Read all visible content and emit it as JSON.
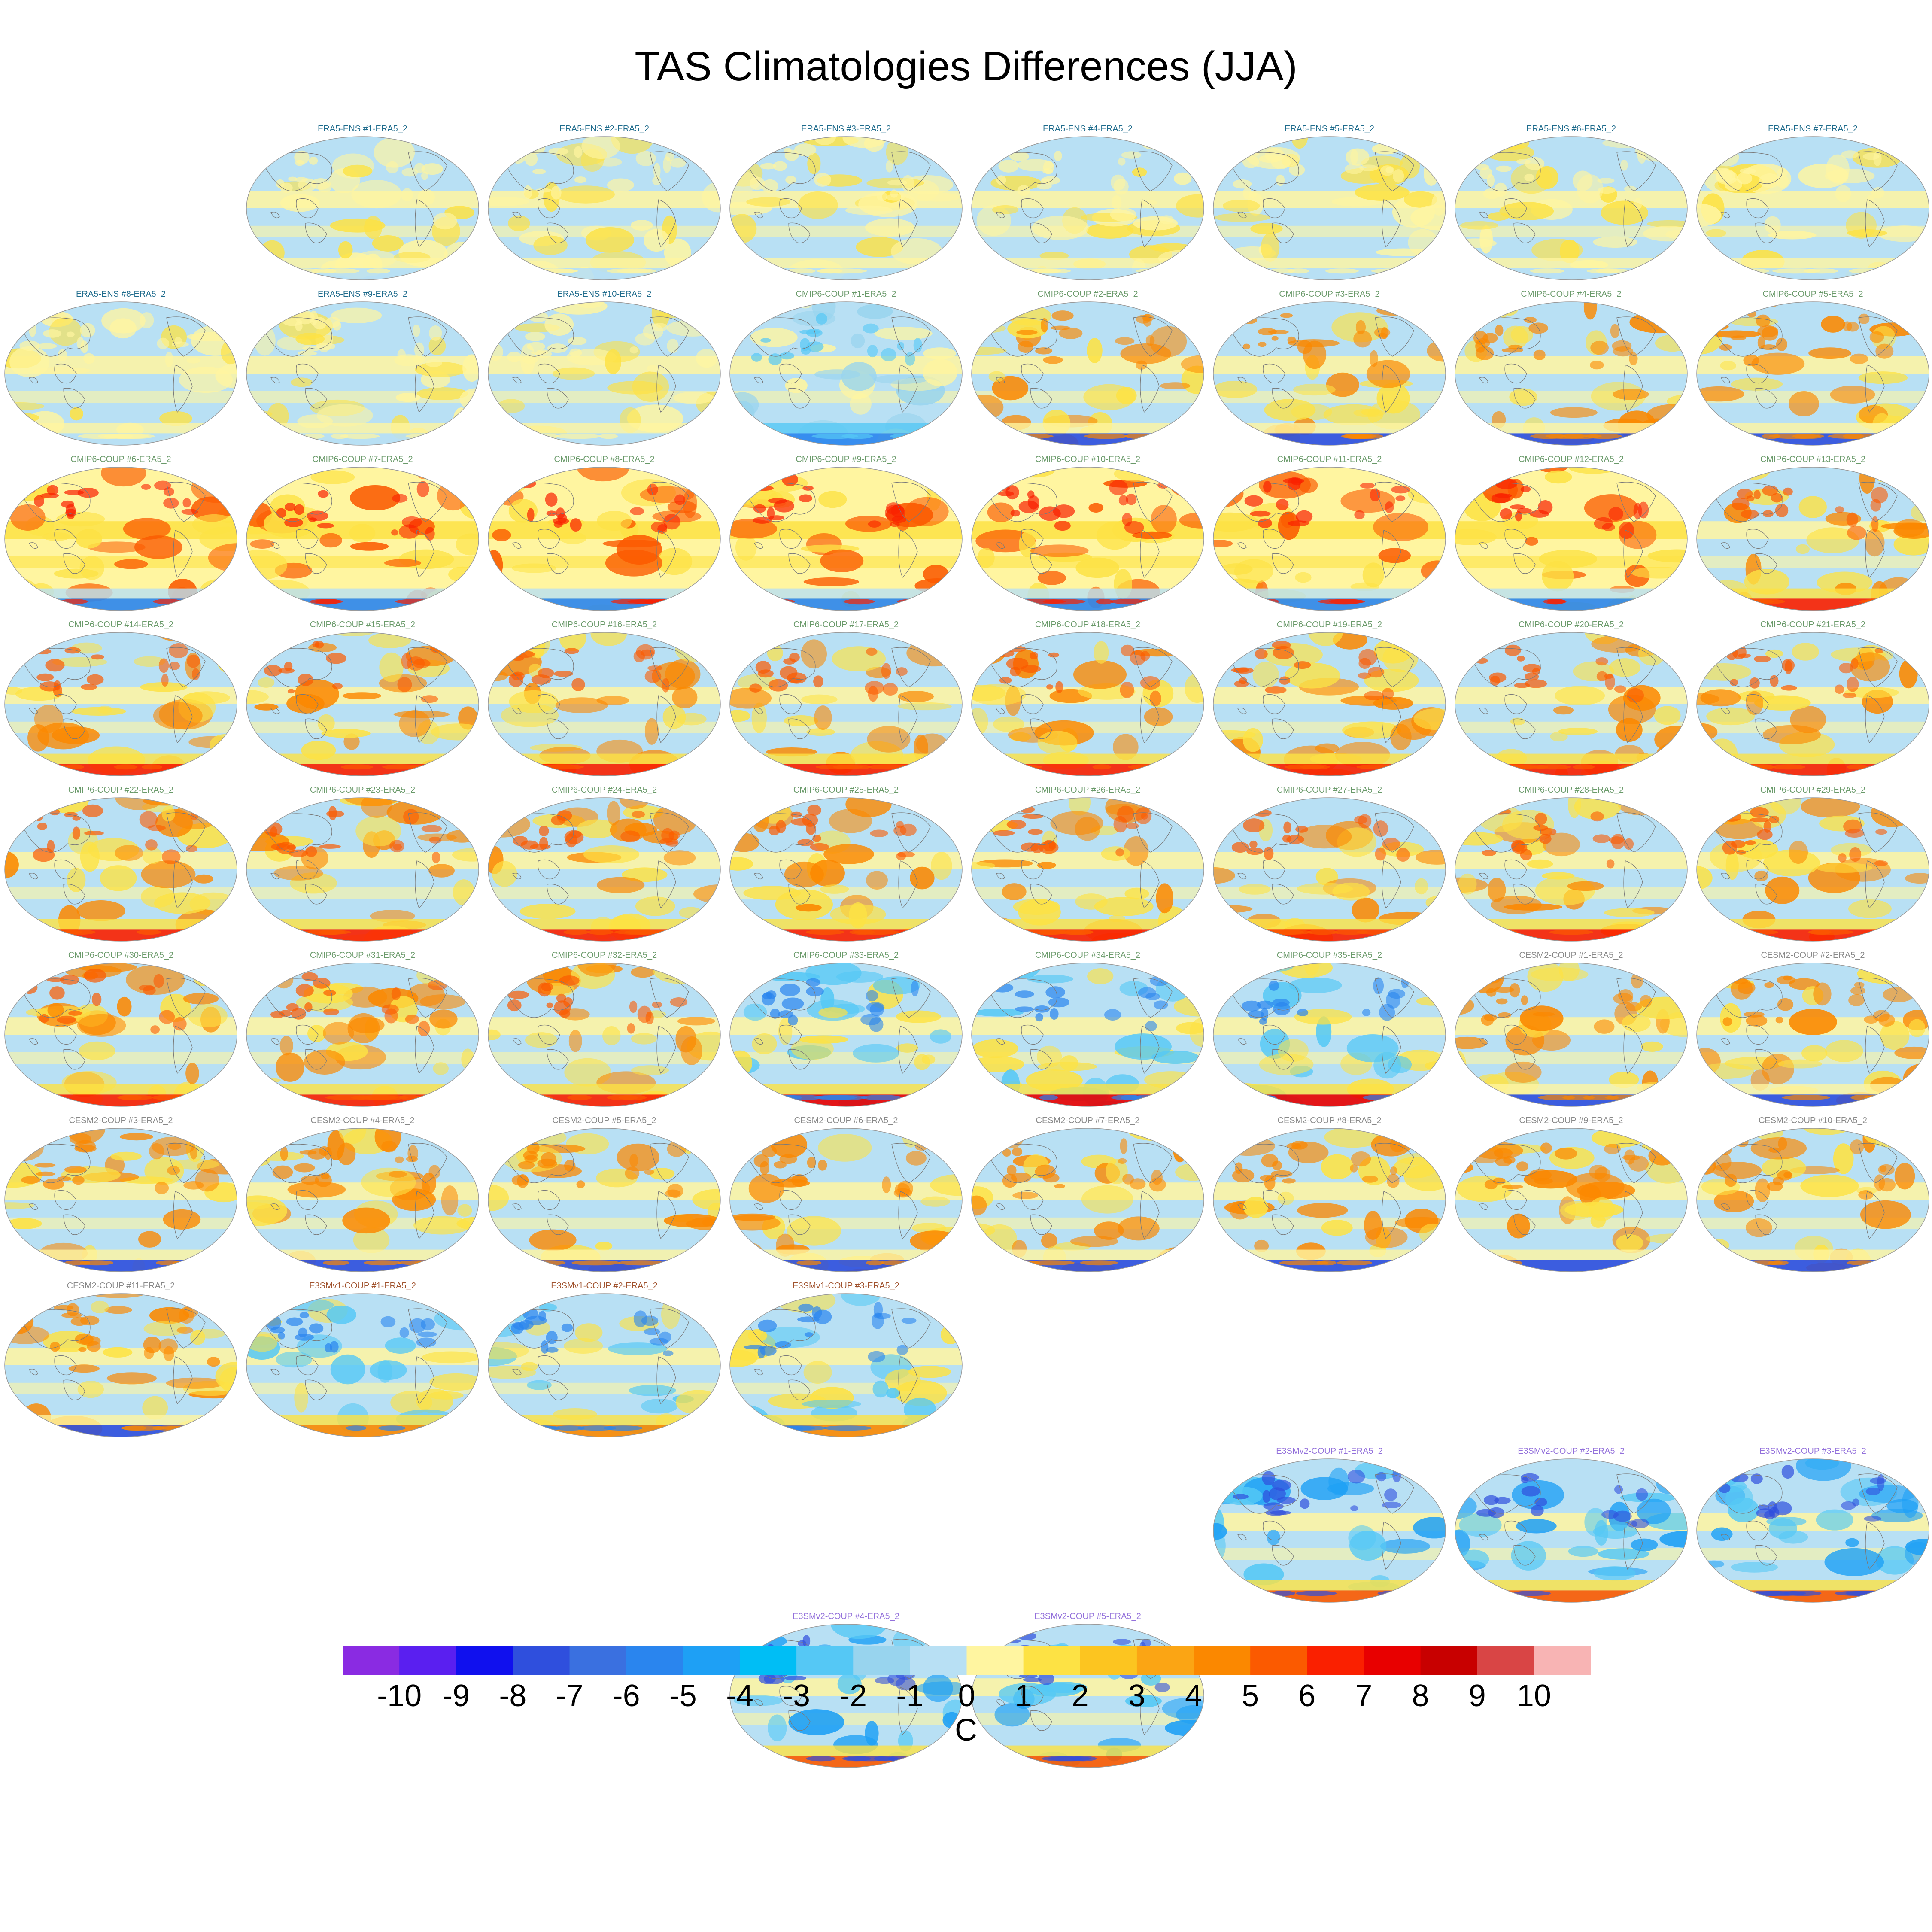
{
  "title": "TAS Climatologies Differences (JJA)",
  "colorbar": {
    "units": "C",
    "ticks": [
      "-10",
      "-9",
      "-8",
      "-7",
      "-6",
      "-5",
      "-4",
      "-3",
      "-2",
      "-1",
      "0",
      "1",
      "2",
      "3",
      "4",
      "5",
      "6",
      "7",
      "8",
      "9",
      "10"
    ],
    "colors": [
      "#8a2be2",
      "#5a1ff0",
      "#1010ee",
      "#2f4fdd",
      "#3a70e0",
      "#2a85ee",
      "#1ea0f5",
      "#00bef5",
      "#55c8f5",
      "#98d4ee",
      "#b8e0f4",
      "#fff5a0",
      "#fde244",
      "#fcc520",
      "#fba514",
      "#fb8800",
      "#fb5a00",
      "#fa2000",
      "#e80000",
      "#c80000",
      "#d94545",
      "#f8b4b4"
    ]
  },
  "group_colors": {
    "ERA5-ENS": "#1e6b8c",
    "CMIP6-COUP": "#6a9a6a",
    "CESM2-COUP": "#888888",
    "E3SMv1-COUP": "#a0522d",
    "E3SMv2-COUP": "#9370db"
  },
  "panels": [
    {
      "label": "ERA5-ENS    #1-ERA5_2",
      "group": "ERA5-ENS",
      "style": "era"
    },
    {
      "label": "ERA5-ENS    #2-ERA5_2",
      "group": "ERA5-ENS",
      "style": "era"
    },
    {
      "label": "ERA5-ENS    #3-ERA5_2",
      "group": "ERA5-ENS",
      "style": "era"
    },
    {
      "label": "ERA5-ENS    #4-ERA5_2",
      "group": "ERA5-ENS",
      "style": "era"
    },
    {
      "label": "ERA5-ENS    #5-ERA5_2",
      "group": "ERA5-ENS",
      "style": "era"
    },
    {
      "label": "ERA5-ENS    #6-ERA5_2",
      "group": "ERA5-ENS",
      "style": "era"
    },
    {
      "label": "ERA5-ENS    #7-ERA5_2",
      "group": "ERA5-ENS",
      "style": "era"
    },
    {
      "label": "ERA5-ENS    #8-ERA5_2",
      "group": "ERA5-ENS",
      "style": "era"
    },
    {
      "label": "ERA5-ENS    #9-ERA5_2",
      "group": "ERA5-ENS",
      "style": "era"
    },
    {
      "label": "ERA5-ENS    #10-ERA5_2",
      "group": "ERA5-ENS",
      "style": "era"
    },
    {
      "label": "CMIP6-COUP  #1-ERA5_2",
      "group": "CMIP6-COUP",
      "style": "cool"
    },
    {
      "label": "CMIP6-COUP  #2-ERA5_2",
      "group": "CMIP6-COUP",
      "style": "mixed"
    },
    {
      "label": "CMIP6-COUP  #3-ERA5_2",
      "group": "CMIP6-COUP",
      "style": "mixed"
    },
    {
      "label": "CMIP6-COUP  #4-ERA5_2",
      "group": "CMIP6-COUP",
      "style": "mixed"
    },
    {
      "label": "CMIP6-COUP  #5-ERA5_2",
      "group": "CMIP6-COUP",
      "style": "mixed"
    },
    {
      "label": "CMIP6-COUP  #6-ERA5_2",
      "group": "CMIP6-COUP",
      "style": "warm"
    },
    {
      "label": "CMIP6-COUP  #7-ERA5_2",
      "group": "CMIP6-COUP",
      "style": "warm"
    },
    {
      "label": "CMIP6-COUP  #8-ERA5_2",
      "group": "CMIP6-COUP",
      "style": "warm"
    },
    {
      "label": "CMIP6-COUP  #9-ERA5_2",
      "group": "CMIP6-COUP",
      "style": "warm"
    },
    {
      "label": "CMIP6-COUP  #10-ERA5_2",
      "group": "CMIP6-COUP",
      "style": "warm"
    },
    {
      "label": "CMIP6-COUP  #11-ERA5_2",
      "group": "CMIP6-COUP",
      "style": "warm"
    },
    {
      "label": "CMIP6-COUP  #12-ERA5_2",
      "group": "CMIP6-COUP",
      "style": "warm"
    },
    {
      "label": "CMIP6-COUP  #13-ERA5_2",
      "group": "CMIP6-COUP",
      "style": "hot"
    },
    {
      "label": "CMIP6-COUP  #14-ERA5_2",
      "group": "CMIP6-COUP",
      "style": "hot"
    },
    {
      "label": "CMIP6-COUP  #15-ERA5_2",
      "group": "CMIP6-COUP",
      "style": "hot"
    },
    {
      "label": "CMIP6-COUP  #16-ERA5_2",
      "group": "CMIP6-COUP",
      "style": "hot"
    },
    {
      "label": "CMIP6-COUP  #17-ERA5_2",
      "group": "CMIP6-COUP",
      "style": "hot"
    },
    {
      "label": "CMIP6-COUP  #18-ERA5_2",
      "group": "CMIP6-COUP",
      "style": "hot"
    },
    {
      "label": "CMIP6-COUP  #19-ERA5_2",
      "group": "CMIP6-COUP",
      "style": "hot"
    },
    {
      "label": "CMIP6-COUP  #20-ERA5_2",
      "group": "CMIP6-COUP",
      "style": "hot"
    },
    {
      "label": "CMIP6-COUP  #21-ERA5_2",
      "group": "CMIP6-COUP",
      "style": "hot"
    },
    {
      "label": "CMIP6-COUP  #22-ERA5_2",
      "group": "CMIP6-COUP",
      "style": "hot"
    },
    {
      "label": "CMIP6-COUP  #23-ERA5_2",
      "group": "CMIP6-COUP",
      "style": "hot"
    },
    {
      "label": "CMIP6-COUP  #24-ERA5_2",
      "group": "CMIP6-COUP",
      "style": "hot"
    },
    {
      "label": "CMIP6-COUP  #25-ERA5_2",
      "group": "CMIP6-COUP",
      "style": "hot"
    },
    {
      "label": "CMIP6-COUP  #26-ERA5_2",
      "group": "CMIP6-COUP",
      "style": "hot"
    },
    {
      "label": "CMIP6-COUP  #27-ERA5_2",
      "group": "CMIP6-COUP",
      "style": "hot"
    },
    {
      "label": "CMIP6-COUP  #28-ERA5_2",
      "group": "CMIP6-COUP",
      "style": "hot"
    },
    {
      "label": "CMIP6-COUP  #29-ERA5_2",
      "group": "CMIP6-COUP",
      "style": "hot"
    },
    {
      "label": "CMIP6-COUP  #30-ERA5_2",
      "group": "CMIP6-COUP",
      "style": "hot"
    },
    {
      "label": "CMIP6-COUP  #31-ERA5_2",
      "group": "CMIP6-COUP",
      "style": "hot"
    },
    {
      "label": "CMIP6-COUP  #32-ERA5_2",
      "group": "CMIP6-COUP",
      "style": "hot"
    },
    {
      "label": "CMIP6-COUP  #33-ERA5_2",
      "group": "CMIP6-COUP",
      "style": "coolhot"
    },
    {
      "label": "CMIP6-COUP  #34-ERA5_2",
      "group": "CMIP6-COUP",
      "style": "coolhot"
    },
    {
      "label": "CMIP6-COUP  #35-ERA5_2",
      "group": "CMIP6-COUP",
      "style": "coolhot"
    },
    {
      "label": "CESM2-COUP  #1-ERA5_2",
      "group": "CESM2-COUP",
      "style": "mixed"
    },
    {
      "label": "CESM2-COUP  #2-ERA5_2",
      "group": "CESM2-COUP",
      "style": "mixed"
    },
    {
      "label": "CESM2-COUP  #3-ERA5_2",
      "group": "CESM2-COUP",
      "style": "mixed"
    },
    {
      "label": "CESM2-COUP  #4-ERA5_2",
      "group": "CESM2-COUP",
      "style": "mixed"
    },
    {
      "label": "CESM2-COUP  #5-ERA5_2",
      "group": "CESM2-COUP",
      "style": "mixed"
    },
    {
      "label": "CESM2-COUP  #6-ERA5_2",
      "group": "CESM2-COUP",
      "style": "mixed"
    },
    {
      "label": "CESM2-COUP  #7-ERA5_2",
      "group": "CESM2-COUP",
      "style": "mixed"
    },
    {
      "label": "CESM2-COUP  #8-ERA5_2",
      "group": "CESM2-COUP",
      "style": "mixed"
    },
    {
      "label": "CESM2-COUP  #9-ERA5_2",
      "group": "CESM2-COUP",
      "style": "mixed"
    },
    {
      "label": "CESM2-COUP  #10-ERA5_2",
      "group": "CESM2-COUP",
      "style": "mixed"
    },
    {
      "label": "CESM2-COUP  #11-ERA5_2",
      "group": "CESM2-COUP",
      "style": "mixed"
    },
    {
      "label": "E3SMv1-COUP #1-ERA5_2",
      "group": "E3SMv1-COUP",
      "style": "e3sm"
    },
    {
      "label": "E3SMv1-COUP #2-ERA5_2",
      "group": "E3SMv1-COUP",
      "style": "e3sm"
    },
    {
      "label": "E3SMv1-COUP #3-ERA5_2",
      "group": "E3SMv1-COUP",
      "style": "e3sm"
    },
    {
      "label": "E3SMv2-COUP #1-ERA5_2",
      "group": "E3SMv2-COUP",
      "style": "e3smv2"
    },
    {
      "label": "E3SMv2-COUP #2-ERA5_2",
      "group": "E3SMv2-COUP",
      "style": "e3smv2"
    },
    {
      "label": "E3SMv2-COUP #3-ERA5_2",
      "group": "E3SMv2-COUP",
      "style": "e3smv2"
    },
    {
      "label": "E3SMv2-COUP #4-ERA5_2",
      "group": "E3SMv2-COUP",
      "style": "e3smv2"
    },
    {
      "label": "E3SMv2-COUP #5-ERA5_2",
      "group": "E3SMv2-COUP",
      "style": "e3smv2"
    }
  ]
}
